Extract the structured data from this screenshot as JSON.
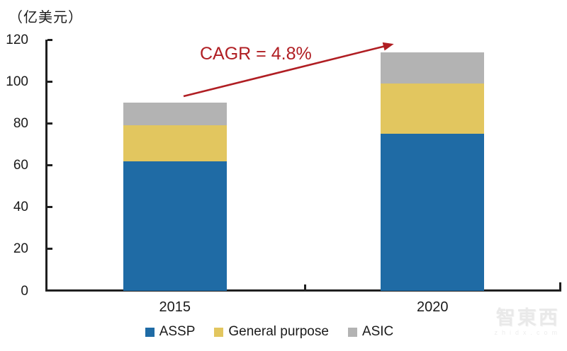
{
  "chart_data": {
    "type": "bar",
    "stacked": true,
    "title": "",
    "unit_label": "（亿美元）",
    "categories": [
      "2015",
      "2020"
    ],
    "series": [
      {
        "name": "ASSP",
        "color": "#1F6BA5",
        "values": [
          62,
          75
        ]
      },
      {
        "name": "General purpose",
        "color": "#E2C65F",
        "values": [
          17,
          24
        ]
      },
      {
        "name": "ASIC",
        "color": "#B3B3B3",
        "values": [
          11,
          15
        ]
      }
    ],
    "totals": [
      90,
      114
    ],
    "ylim": [
      0,
      120
    ],
    "ytick_step": 20,
    "yticks": [
      0,
      20,
      40,
      60,
      80,
      100,
      120
    ],
    "xlabel": "",
    "ylabel": "",
    "grid": false,
    "legend_position": "bottom",
    "annotation": "CAGR = 4.8%",
    "annotation_color": "#B01E23",
    "axis_color": "#1f1f1f"
  },
  "watermark": {
    "brand": "智東西",
    "domain": "zhidx.com"
  }
}
